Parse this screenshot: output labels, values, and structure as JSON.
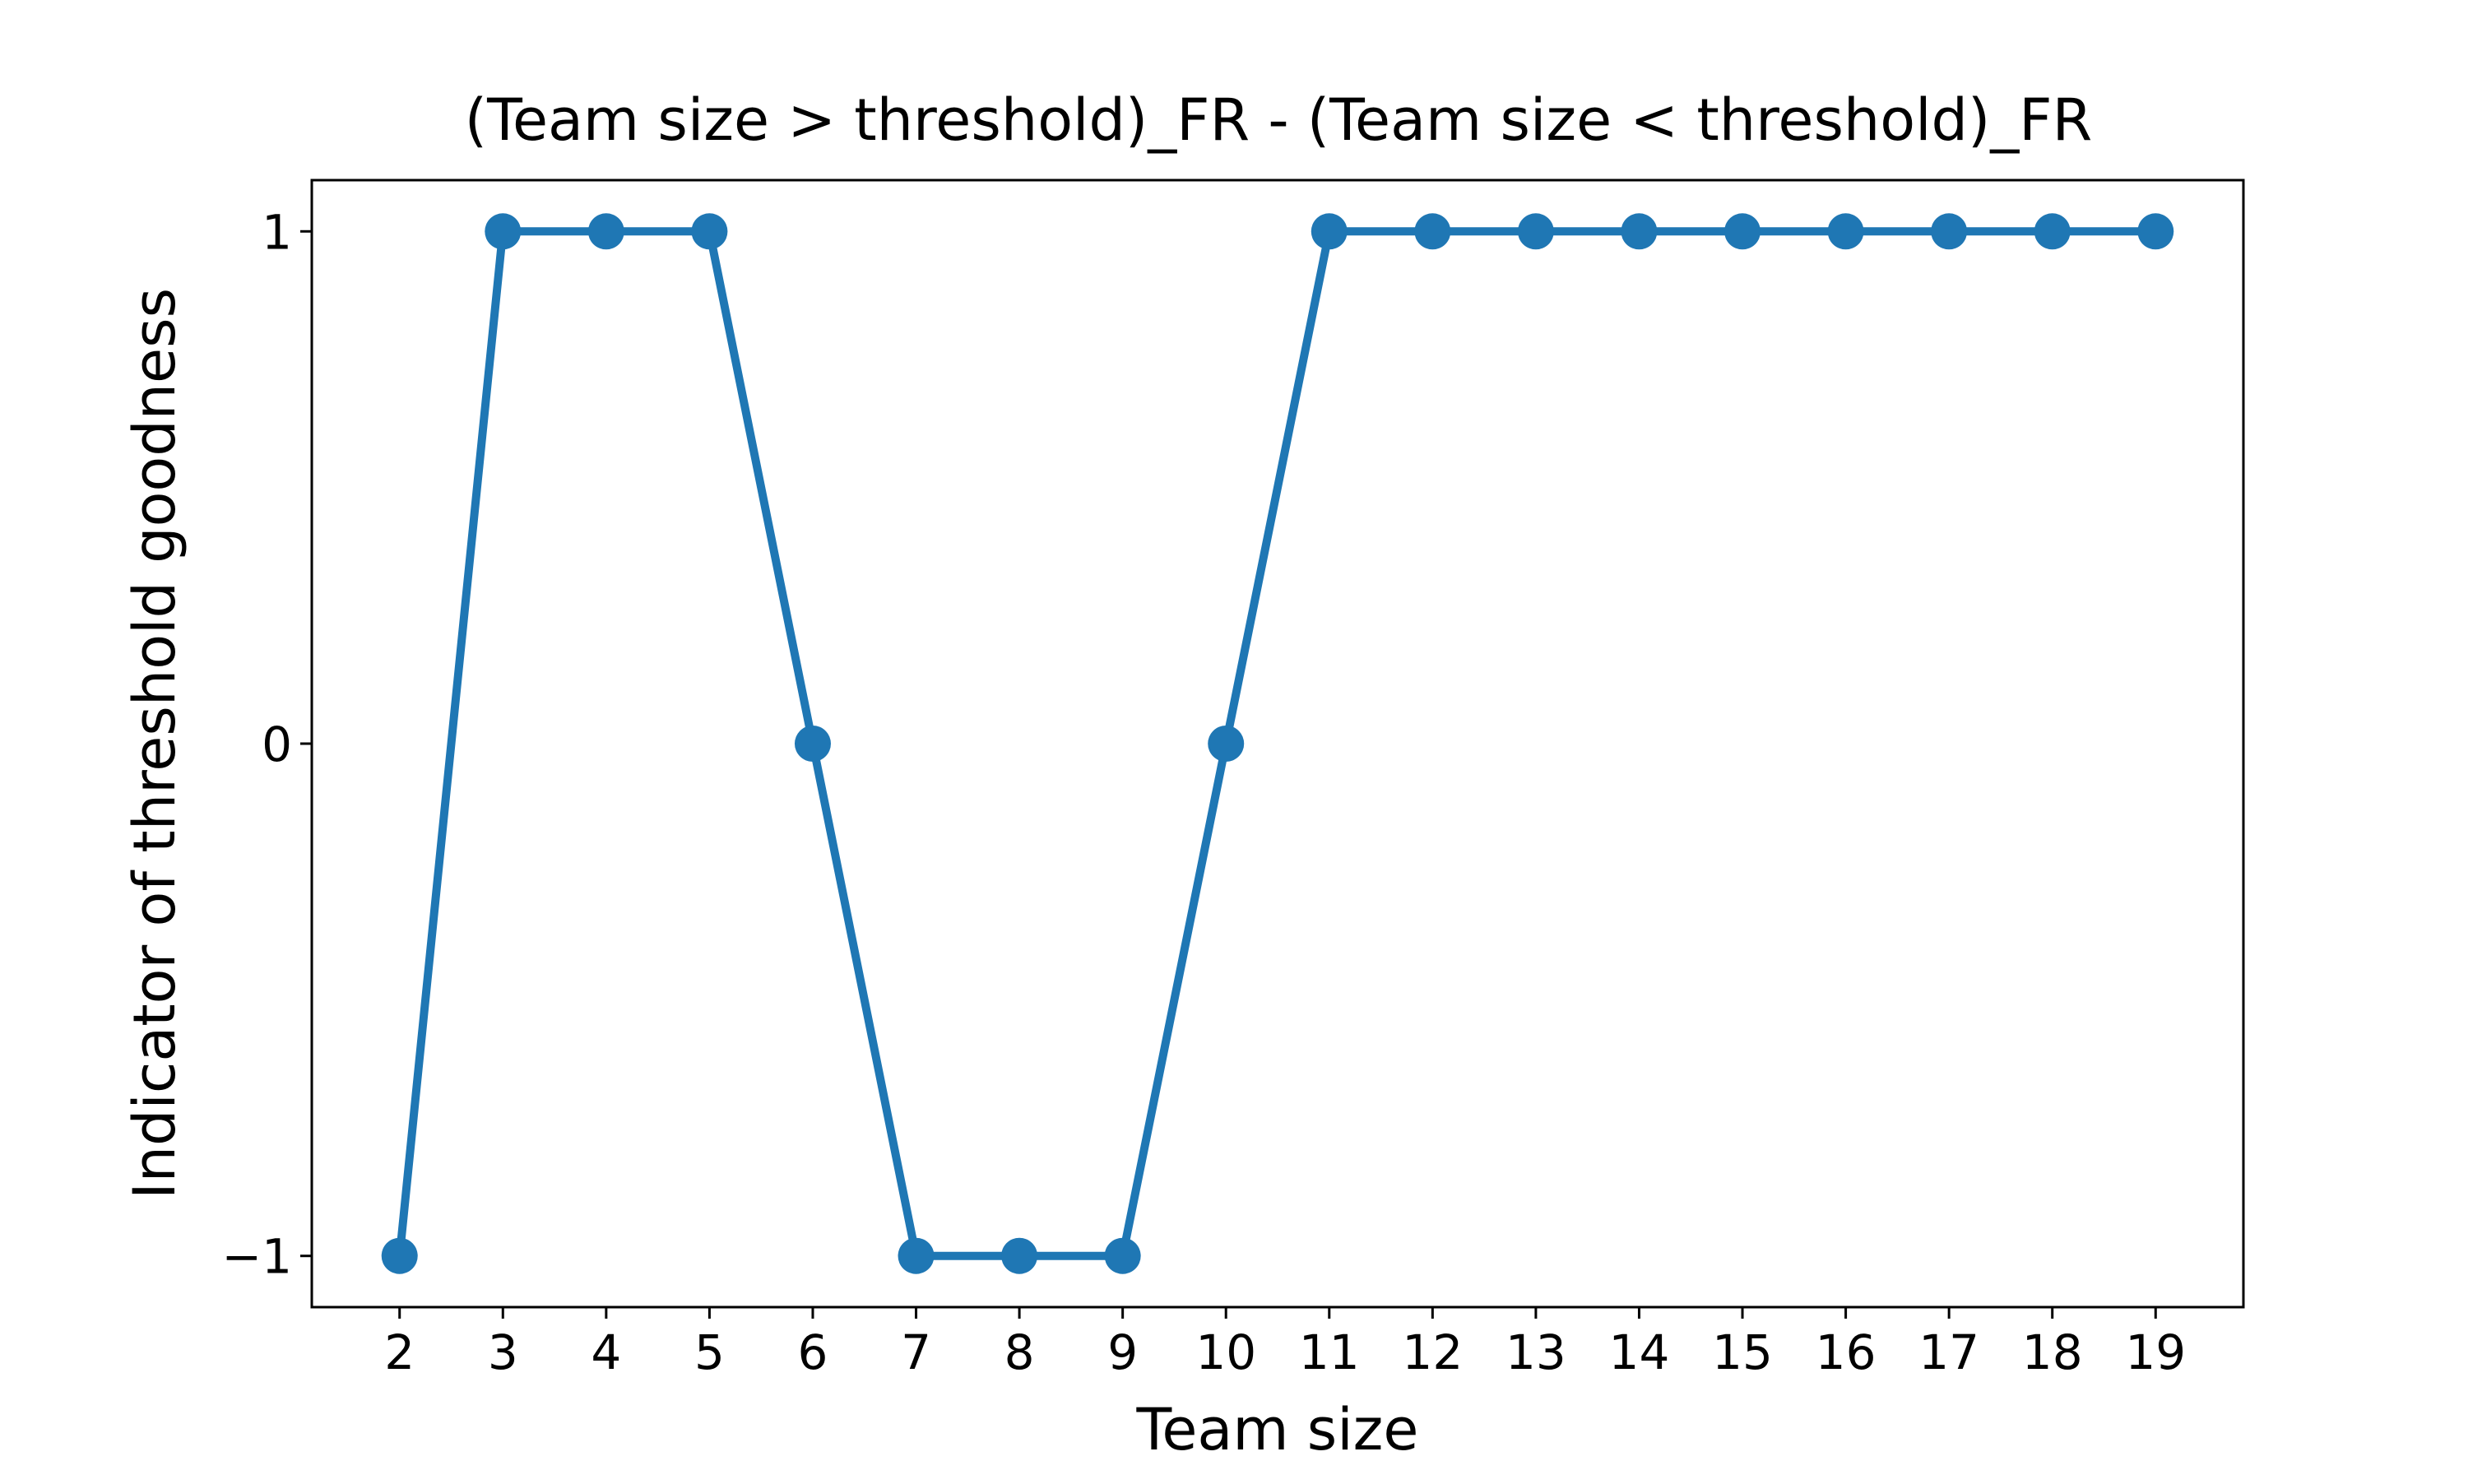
{
  "chart_data": {
    "type": "line",
    "title": "(Team size > threshold)_FR - (Team size < threshold)_FR",
    "xlabel": "Team size",
    "ylabel": "Indicator of threshold goodness",
    "x": [
      2,
      3,
      4,
      5,
      6,
      7,
      8,
      9,
      10,
      11,
      12,
      13,
      14,
      15,
      16,
      17,
      18,
      19
    ],
    "series": [
      {
        "values": [
          -1,
          1,
          1,
          1,
          0,
          -1,
          -1,
          -1,
          0,
          1,
          1,
          1,
          1,
          1,
          1,
          1,
          1,
          1
        ],
        "color": "#1f77b4",
        "marker": "circle"
      }
    ],
    "xticks": [
      "2",
      "3",
      "4",
      "5",
      "6",
      "7",
      "8",
      "9",
      "10",
      "11",
      "12",
      "13",
      "14",
      "15",
      "16",
      "17",
      "18",
      "19"
    ],
    "yticks": [
      {
        "value": -1,
        "label": "−1"
      },
      {
        "value": 0,
        "label": "0"
      },
      {
        "value": 1,
        "label": "1"
      }
    ],
    "xlim": [
      1.15,
      19.85
    ],
    "ylim": [
      -1.1,
      1.1
    ],
    "grid": false,
    "legend": "none"
  }
}
